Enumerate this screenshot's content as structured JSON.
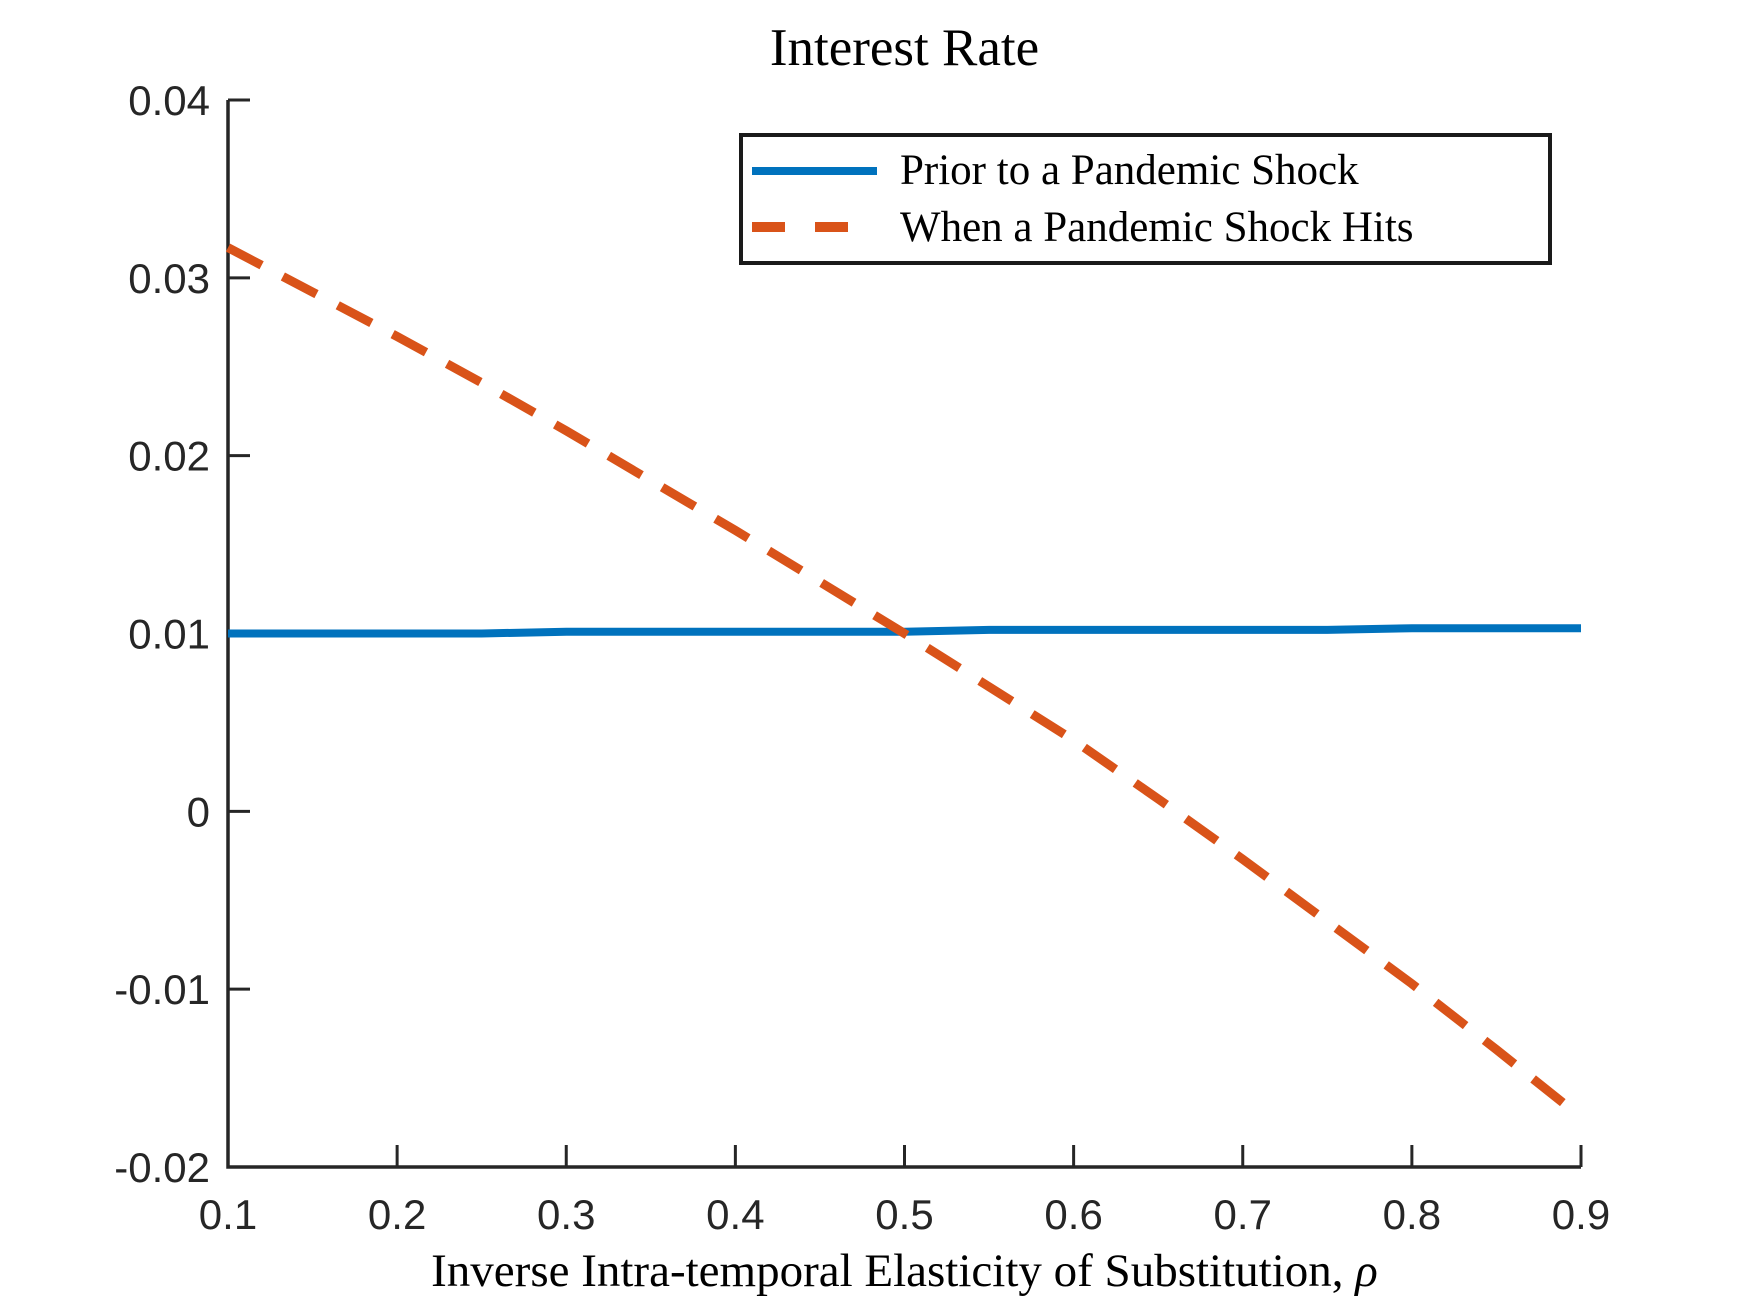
{
  "figure": {
    "title": "Interest Rate",
    "xlabel_text": "Inverse Intra-temporal Elasticity of Substitution, ",
    "xlabel_symbol": "ρ"
  },
  "legend": {
    "entries": [
      {
        "label": "Prior to a Pandemic Shock",
        "style": "solid",
        "color": "#0072BD"
      },
      {
        "label": "When a Pandemic Shock Hits",
        "style": "dashed",
        "color": "#D95319"
      }
    ]
  },
  "chart_data": {
    "type": "line",
    "title": "Interest Rate",
    "xlabel": "Inverse Intra-temporal Elasticity of Substitution, ρ",
    "ylabel": "",
    "xlim": [
      0.1,
      0.9
    ],
    "ylim": [
      -0.02,
      0.04
    ],
    "grid": false,
    "legend_position": "inside upper right",
    "axis_color": "#262626",
    "x_ticks": [
      0.1,
      0.2,
      0.3,
      0.4,
      0.5,
      0.6,
      0.7,
      0.8,
      0.9
    ],
    "x_tick_labels": [
      "0.1",
      "0.2",
      "0.3",
      "0.4",
      "0.5",
      "0.6",
      "0.7",
      "0.8",
      "0.9"
    ],
    "y_ticks": [
      0.04,
      0.03,
      0.02,
      0.01,
      0,
      -0.01,
      -0.02
    ],
    "y_tick_labels": [
      "0.04",
      "0.03",
      "0.02",
      "0.01",
      "0",
      "-0.01",
      "-0.02"
    ],
    "x": [
      0.1,
      0.15,
      0.2,
      0.25,
      0.3,
      0.35,
      0.4,
      0.45,
      0.5,
      0.55,
      0.6,
      0.65,
      0.7,
      0.75,
      0.8,
      0.85,
      0.9
    ],
    "series": [
      {
        "name": "Prior to a Pandemic Shock",
        "color": "#0072BD",
        "line_style": "solid",
        "line_width": 8,
        "values": [
          0.01,
          0.01,
          0.01,
          0.01,
          0.0101,
          0.0101,
          0.0101,
          0.0101,
          0.0101,
          0.0102,
          0.0102,
          0.0102,
          0.0102,
          0.0102,
          0.0103,
          0.0103,
          0.0103
        ]
      },
      {
        "name": "When a Pandemic Shock Hits",
        "color": "#D95319",
        "line_style": "dashed",
        "line_width": 9,
        "values": [
          0.0317,
          0.0292,
          0.0267,
          0.0241,
          0.0214,
          0.0186,
          0.0158,
          0.0129,
          0.01,
          0.007,
          0.004,
          0.0007,
          -0.0027,
          -0.0062,
          -0.0097,
          -0.0134,
          -0.0172
        ]
      }
    ]
  }
}
